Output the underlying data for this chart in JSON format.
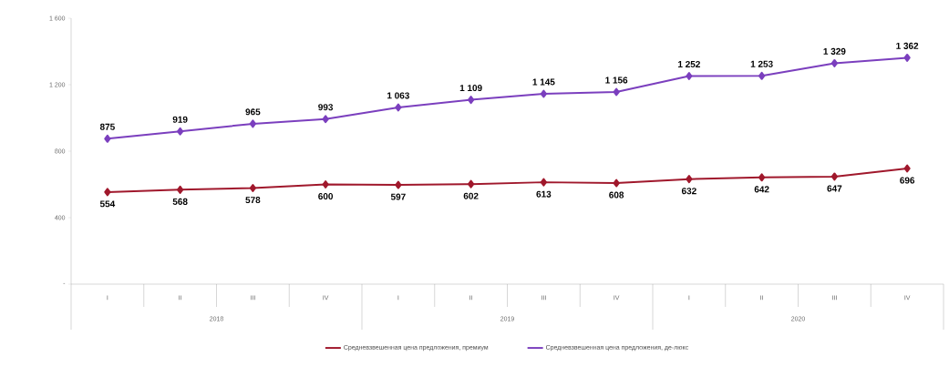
{
  "chart_data": {
    "type": "line",
    "categories": [
      "I",
      "II",
      "III",
      "IV",
      "I",
      "II",
      "III",
      "IV",
      "I",
      "II",
      "III",
      "IV"
    ],
    "annotations": [
      "2018",
      "2019",
      "2020"
    ],
    "series": [
      {
        "name": "Средневзвешенная цена предложения, премиум",
        "color": "#a0182c",
        "values": [
          554,
          568,
          578,
          600,
          597,
          602,
          613,
          608,
          632,
          642,
          647,
          696
        ],
        "value_labels": [
          "554",
          "568",
          "578",
          "600",
          "597",
          "602",
          "613",
          "608",
          "632",
          "642",
          "647",
          "696"
        ]
      },
      {
        "name": "Средневзвешенная цена предложения, де-люкс",
        "color": "#7b3fbe",
        "values": [
          875,
          919,
          965,
          993,
          1063,
          1109,
          1145,
          1156,
          1252,
          1253,
          1329,
          1362
        ],
        "value_labels": [
          "875",
          "919",
          "965",
          "993",
          "1 063",
          "1 109",
          "1 145",
          "1 156",
          "1 252",
          "1 253",
          "1 329",
          "1 362"
        ]
      }
    ],
    "ylim": [
      0,
      1600
    ],
    "yticks": [
      {
        "value": 0,
        "label": "-"
      },
      400,
      800,
      {
        "value": 1200,
        "label": "1 200"
      },
      {
        "value": 1600,
        "label": "1 600"
      }
    ],
    "grid": false,
    "legend": "bottom",
    "marker": "diamond",
    "line_style": "solid"
  }
}
